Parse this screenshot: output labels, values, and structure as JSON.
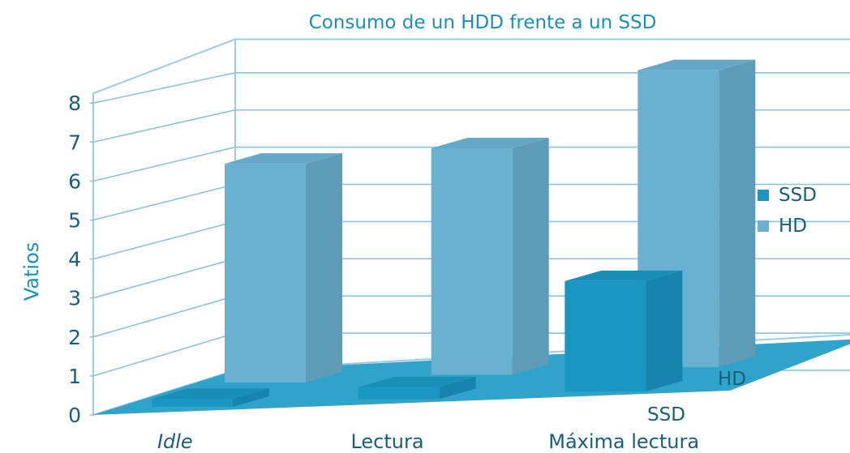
{
  "chart_data": {
    "type": "bar",
    "subtype": "3d-clustered-depth",
    "title": "Consumo de un HDD frente a un SSD",
    "ylabel": "Vatios",
    "xlabel": "",
    "categories": [
      "Idle",
      "Lectura",
      "Máxima lectura"
    ],
    "category_styles": [
      "italic",
      "normal",
      "normal"
    ],
    "y_ticks": [
      "0",
      "1",
      "2",
      "3",
      "4",
      "5",
      "6",
      "7",
      "8"
    ],
    "ylim": [
      0,
      8
    ],
    "grid": true,
    "legend_position": "right",
    "series": [
      {
        "name": "SSD",
        "values": [
          0.2,
          0.3,
          2.8
        ],
        "color": "#1a96c2"
      },
      {
        "name": "HD",
        "values": [
          5.6,
          5.8,
          7.6
        ],
        "color": "#6ab0d0"
      }
    ],
    "depth_labels": [
      "HD",
      "SSD"
    ]
  }
}
